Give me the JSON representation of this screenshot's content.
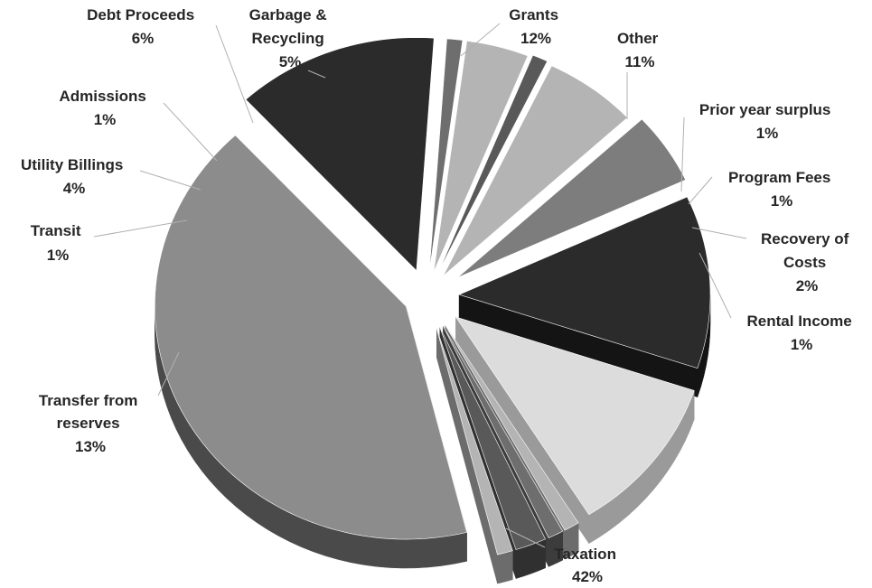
{
  "chart_data": {
    "type": "pie",
    "title": "",
    "slices": [
      {
        "label": "Taxation",
        "value": 42,
        "value_label": "42%",
        "color": "#8c8c8c",
        "side_color": "#4a4a4a"
      },
      {
        "label": "Transfer from reserves",
        "value": 13,
        "value_label": "13%",
        "color": "#2b2b2b",
        "side_color": "#141414"
      },
      {
        "label": "Transit",
        "value": 1,
        "value_label": "1%",
        "color": "#6e6e6e",
        "side_color": "#3c3c3c"
      },
      {
        "label": "Utility Billings",
        "value": 4,
        "value_label": "4%",
        "color": "#b4b4b4",
        "side_color": "#6c6c6c"
      },
      {
        "label": "Admissions",
        "value": 1,
        "value_label": "1%",
        "color": "#595959",
        "side_color": "#303030"
      },
      {
        "label": "Debt Proceeds",
        "value": 6,
        "value_label": "6%",
        "color": "#b4b4b4",
        "side_color": "#6c6c6c"
      },
      {
        "label": "Garbage & Recycling",
        "value": 5,
        "value_label": "5%",
        "color": "#7d7d7d",
        "side_color": "#404040"
      },
      {
        "label": "Grants",
        "value": 12,
        "value_label": "12%",
        "color": "#2b2b2b",
        "side_color": "#141414"
      },
      {
        "label": "Other",
        "value": 11,
        "value_label": "11%",
        "color": "#dcdcdc",
        "side_color": "#9a9a9a"
      },
      {
        "label": "Prior year surplus",
        "value": 1,
        "value_label": "1%",
        "color": "#b4b4b4",
        "side_color": "#6c6c6c"
      },
      {
        "label": "Program Fees",
        "value": 1,
        "value_label": "1%",
        "color": "#6e6e6e",
        "side_color": "#3c3c3c"
      },
      {
        "label": "Recovery of Costs",
        "value": 2,
        "value_label": "2%",
        "color": "#595959",
        "side_color": "#303030"
      },
      {
        "label": "Rental Income",
        "value": 1,
        "value_label": "1%",
        "color": "#b4b4b4",
        "side_color": "#6c6c6c"
      }
    ]
  }
}
